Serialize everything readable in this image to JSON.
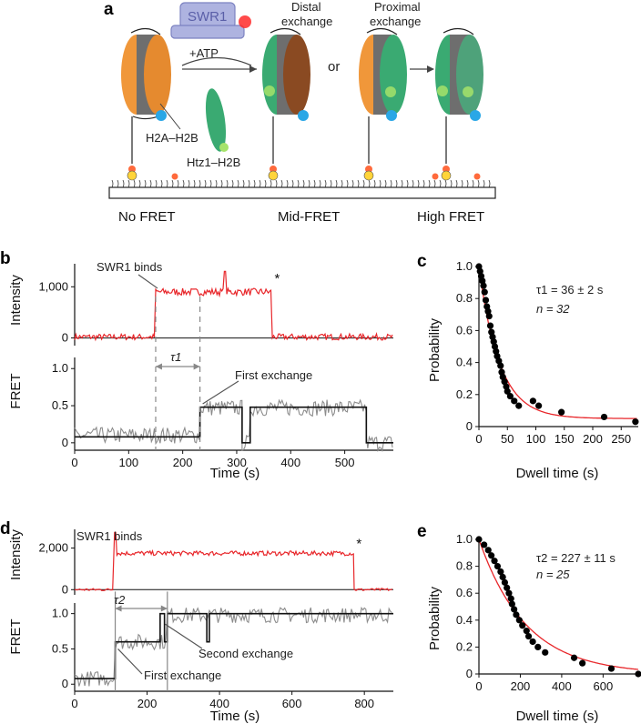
{
  "schematic": {
    "panel": "a",
    "swr1_label": "SWR1",
    "atp_label": "+ATP",
    "distal_label_1": "Distal",
    "distal_label_2": "exchange",
    "proximal_label_1": "Proximal",
    "proximal_label_2": "exchange",
    "or_label": "or",
    "h2a_label": "H2A–H2B",
    "htz1_label": "Htz1–H2B",
    "no_fret": "No FRET",
    "mid_fret": "Mid-FRET",
    "high_fret": "High FRET",
    "colors": {
      "h2a": "#f0973a",
      "htz1": "#3aaa72",
      "core": "#6e6e6e",
      "donor": "#2aa7e6",
      "acceptor": "#a6e36a",
      "swr1": "#aeb3e0"
    }
  },
  "chart_data": [
    {
      "panel": "b",
      "type": "line",
      "title": "",
      "ylabel": "Intensity",
      "xlabel": "",
      "xlim": [
        0,
        590
      ],
      "ylim": [
        -150,
        1450
      ],
      "yticks": [
        0,
        1000
      ],
      "ytick_labels": [
        "0",
        "1,000"
      ],
      "annotations": [
        "SWR1 binds",
        "*"
      ],
      "series": [
        {
          "color": "#e8262a",
          "segments": [
            {
              "x": [
                0,
                148
              ],
              "level": 20,
              "noise": 60
            },
            {
              "x": [
                150,
                365
              ],
              "level": 900,
              "noise": 70
            },
            {
              "x": [
                366,
                590
              ],
              "level": 20,
              "noise": 60
            }
          ],
          "spike": {
            "x": 278,
            "y": 1300
          }
        }
      ]
    },
    {
      "panel": "b",
      "type": "line",
      "title": "",
      "ylabel": "FRET",
      "xlabel": "Time (s)",
      "xlim": [
        0,
        590
      ],
      "ylim": [
        -0.1,
        1.15
      ],
      "xticks": [
        0,
        100,
        200,
        300,
        400,
        500
      ],
      "yticks": [
        0,
        0.5,
        1.0
      ],
      "ytick_labels": [
        "0",
        "0.5",
        "1.0"
      ],
      "tau_label": "τ1",
      "tau_range": [
        150,
        232
      ],
      "dashed_x": [
        150,
        232
      ],
      "annotations": [
        "First exchange"
      ],
      "series": [
        {
          "name": "raw",
          "color": "#8c8c8c",
          "steps": [
            [
              0,
              0.1
            ],
            [
              232,
              0.47
            ],
            [
              310,
              0.0
            ],
            [
              325,
              0.47
            ],
            [
              540,
              0.0
            ],
            [
              590,
              0.0
            ]
          ]
        },
        {
          "name": "fit",
          "color": "#111111",
          "steps": [
            [
              0,
              0.08
            ],
            [
              232,
              0.48
            ],
            [
              310,
              0.0
            ],
            [
              325,
              0.48
            ],
            [
              540,
              0.0
            ],
            [
              590,
              0.0
            ]
          ]
        }
      ]
    },
    {
      "panel": "c",
      "type": "scatter",
      "title": "",
      "xlabel": "Dwell time (s)",
      "ylabel": "Probability",
      "xlim": [
        0,
        280
      ],
      "ylim": [
        0,
        1.0
      ],
      "xticks": [
        0,
        50,
        100,
        150,
        200,
        250
      ],
      "yticks": [
        0,
        0.2,
        0.4,
        0.6,
        0.8,
        1.0
      ],
      "ytick_labels": [
        "0",
        "0.2",
        "0.4",
        "0.6",
        "0.8",
        "1.0"
      ],
      "tau_text": "τ1 = 36 ± 2 s",
      "n_text": "n = 32",
      "fit": {
        "tau": 36,
        "offset": 0.05,
        "color": "#e8262a"
      },
      "points": [
        [
          0,
          1.0
        ],
        [
          2,
          0.97
        ],
        [
          4,
          0.94
        ],
        [
          6,
          0.91
        ],
        [
          8,
          0.88
        ],
        [
          10,
          0.84
        ],
        [
          12,
          0.79
        ],
        [
          14,
          0.75
        ],
        [
          16,
          0.72
        ],
        [
          18,
          0.69
        ],
        [
          20,
          0.63
        ],
        [
          22,
          0.59
        ],
        [
          24,
          0.56
        ],
        [
          26,
          0.53
        ],
        [
          28,
          0.5
        ],
        [
          30,
          0.47
        ],
        [
          32,
          0.44
        ],
        [
          35,
          0.41
        ],
        [
          38,
          0.38
        ],
        [
          40,
          0.34
        ],
        [
          42,
          0.31
        ],
        [
          45,
          0.28
        ],
        [
          48,
          0.25
        ],
        [
          50,
          0.22
        ],
        [
          55,
          0.19
        ],
        [
          62,
          0.16
        ],
        [
          70,
          0.13
        ],
        [
          95,
          0.16
        ],
        [
          105,
          0.13
        ],
        [
          145,
          0.09
        ],
        [
          220,
          0.06
        ],
        [
          275,
          0.03
        ]
      ]
    },
    {
      "panel": "d",
      "type": "line",
      "title": "",
      "ylabel": "Intensity",
      "xlabel": "",
      "xlim": [
        0,
        880
      ],
      "ylim": [
        -250,
        2900
      ],
      "yticks": [
        0,
        2000
      ],
      "ytick_labels": [
        "0",
        "2,000"
      ],
      "annotations": [
        "SWR1 binds",
        "*"
      ],
      "series": [
        {
          "color": "#e8262a",
          "segments": [
            {
              "x": [
                0,
                108
              ],
              "level": 0,
              "noise": 60
            },
            {
              "x": [
                110,
                770
              ],
              "level": 1750,
              "noise": 110
            },
            {
              "x": [
                772,
                880
              ],
              "level": 0,
              "noise": 60
            }
          ],
          "spike": {
            "x": 112,
            "y": 2750
          }
        }
      ]
    },
    {
      "panel": "d",
      "type": "line",
      "title": "",
      "ylabel": "FRET",
      "xlabel": "Time (s)",
      "xlim": [
        0,
        880
      ],
      "ylim": [
        -0.1,
        1.15
      ],
      "xticks": [
        0,
        200,
        400,
        600,
        800
      ],
      "yticks": [
        0,
        0.5,
        1.0
      ],
      "ytick_labels": [
        "0",
        "0.5",
        "1.0"
      ],
      "tau_label": "τ2",
      "tau_range": [
        112,
        256
      ],
      "dashed_x": [
        112,
        256
      ],
      "annotations": [
        "Second exchange",
        "First exchange"
      ],
      "series": [
        {
          "name": "raw",
          "color": "#8c8c8c",
          "steps": [
            [
              0,
              0.08
            ],
            [
              112,
              0.6
            ],
            [
              256,
              0.98
            ],
            [
              880,
              0.98
            ]
          ]
        },
        {
          "name": "fit",
          "color": "#111111",
          "steps": [
            [
              0,
              0.08
            ],
            [
              112,
              0.6
            ],
            [
              236,
              1.0
            ],
            [
              248,
              0.6
            ],
            [
              256,
              1.0
            ],
            [
              365,
              0.6
            ],
            [
              372,
              1.0
            ],
            [
              880,
              1.0
            ]
          ]
        }
      ]
    },
    {
      "panel": "e",
      "type": "scatter",
      "title": "",
      "xlabel": "Dwell time (s)",
      "ylabel": "Probability",
      "xlim": [
        0,
        770
      ],
      "ylim": [
        0,
        1.0
      ],
      "xticks": [
        0,
        200,
        400,
        600
      ],
      "yticks": [
        0,
        0.2,
        0.4,
        0.6,
        0.8,
        1.0
      ],
      "ytick_labels": [
        "0",
        "0.2",
        "0.4",
        "0.6",
        "0.8",
        "1.0"
      ],
      "tau_text": "τ2 = 227 ± 11 s",
      "n_text": "n = 25",
      "fit": {
        "tau": 227,
        "offset": 0.0,
        "color": "#e8262a"
      },
      "points": [
        [
          0,
          1.0
        ],
        [
          25,
          0.96
        ],
        [
          45,
          0.92
        ],
        [
          60,
          0.88
        ],
        [
          75,
          0.84
        ],
        [
          90,
          0.8
        ],
        [
          105,
          0.76
        ],
        [
          115,
          0.72
        ],
        [
          125,
          0.68
        ],
        [
          135,
          0.64
        ],
        [
          145,
          0.6
        ],
        [
          155,
          0.56
        ],
        [
          160,
          0.52
        ],
        [
          170,
          0.48
        ],
        [
          180,
          0.44
        ],
        [
          195,
          0.4
        ],
        [
          210,
          0.36
        ],
        [
          230,
          0.32
        ],
        [
          240,
          0.28
        ],
        [
          260,
          0.24
        ],
        [
          285,
          0.2
        ],
        [
          320,
          0.16
        ],
        [
          460,
          0.12
        ],
        [
          500,
          0.08
        ],
        [
          640,
          0.04
        ],
        [
          770,
          0.0
        ]
      ]
    }
  ]
}
